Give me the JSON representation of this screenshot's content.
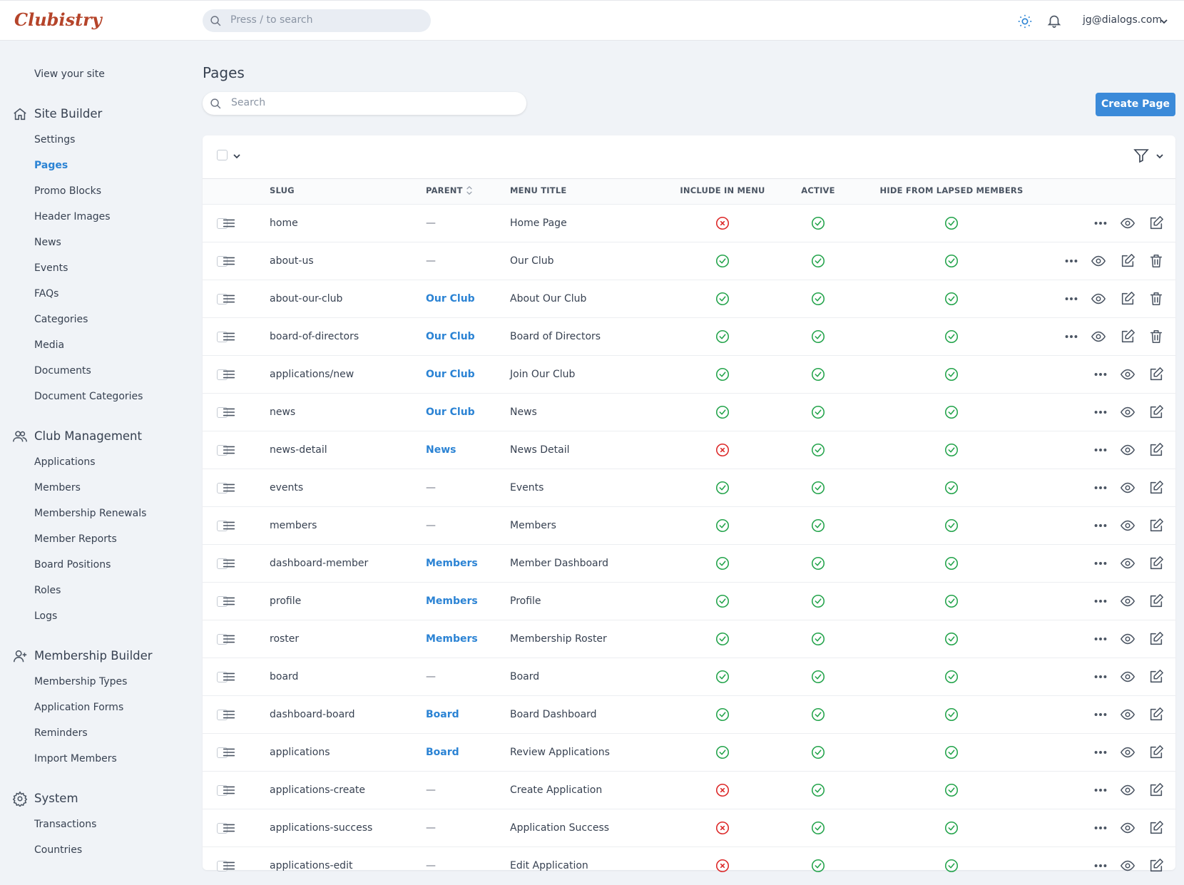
{
  "header": {
    "logo": "Clubistry",
    "search_placeholder": "Press / to search",
    "user": "jg@dialogs.com"
  },
  "sidebar": {
    "view_site": "View your site",
    "active_section": 0,
    "active_item": 1,
    "sections": [
      {
        "title": "Site Builder",
        "items": [
          "Settings",
          "Pages",
          "Promo Blocks",
          "Header Images",
          "News",
          "Events",
          "FAQs",
          "Categories",
          "Media",
          "Documents",
          "Document Categories"
        ]
      },
      {
        "title": "Club Management",
        "items": [
          "Applications",
          "Members",
          "Membership Renewals",
          "Member Reports",
          "Board Positions",
          "Roles",
          "Logs"
        ]
      },
      {
        "title": "Membership Builder",
        "items": [
          "Membership Types",
          "Application Forms",
          "Reminders",
          "Import Members"
        ]
      },
      {
        "title": "System",
        "items": [
          "Transactions",
          "Countries"
        ]
      }
    ]
  },
  "page": {
    "title": "Pages",
    "search_placeholder": "Search",
    "create_button": "Create Page"
  },
  "table": {
    "columns": [
      "SLUG",
      "PARENT",
      "MENU TITLE",
      "INCLUDE IN MENU",
      "ACTIVE",
      "HIDE FROM LAPSED MEMBERS"
    ],
    "rows": [
      {
        "slug": "home",
        "parent": "—",
        "menu_title": "Home Page",
        "include_in_menu": false,
        "active": true,
        "hide_from_lapsed": true,
        "deletable": false
      },
      {
        "slug": "about-us",
        "parent": "—",
        "menu_title": "Our Club",
        "include_in_menu": true,
        "active": true,
        "hide_from_lapsed": true,
        "deletable": true
      },
      {
        "slug": "about-our-club",
        "parent": "Our Club",
        "menu_title": "About Our Club",
        "include_in_menu": true,
        "active": true,
        "hide_from_lapsed": true,
        "deletable": true
      },
      {
        "slug": "board-of-directors",
        "parent": "Our Club",
        "menu_title": "Board of Directors",
        "include_in_menu": true,
        "active": true,
        "hide_from_lapsed": true,
        "deletable": true
      },
      {
        "slug": "applications/new",
        "parent": "Our Club",
        "menu_title": "Join Our Club",
        "include_in_menu": true,
        "active": true,
        "hide_from_lapsed": true,
        "deletable": false
      },
      {
        "slug": "news",
        "parent": "Our Club",
        "menu_title": "News",
        "include_in_menu": true,
        "active": true,
        "hide_from_lapsed": true,
        "deletable": false
      },
      {
        "slug": "news-detail",
        "parent": "News",
        "menu_title": "News Detail",
        "include_in_menu": false,
        "active": true,
        "hide_from_lapsed": true,
        "deletable": false
      },
      {
        "slug": "events",
        "parent": "—",
        "menu_title": "Events",
        "include_in_menu": true,
        "active": true,
        "hide_from_lapsed": true,
        "deletable": false
      },
      {
        "slug": "members",
        "parent": "—",
        "menu_title": "Members",
        "include_in_menu": true,
        "active": true,
        "hide_from_lapsed": true,
        "deletable": false
      },
      {
        "slug": "dashboard-member",
        "parent": "Members",
        "menu_title": "Member Dashboard",
        "include_in_menu": true,
        "active": true,
        "hide_from_lapsed": true,
        "deletable": false
      },
      {
        "slug": "profile",
        "parent": "Members",
        "menu_title": "Profile",
        "include_in_menu": true,
        "active": true,
        "hide_from_lapsed": true,
        "deletable": false
      },
      {
        "slug": "roster",
        "parent": "Members",
        "menu_title": "Membership Roster",
        "include_in_menu": true,
        "active": true,
        "hide_from_lapsed": true,
        "deletable": false
      },
      {
        "slug": "board",
        "parent": "—",
        "menu_title": "Board",
        "include_in_menu": true,
        "active": true,
        "hide_from_lapsed": true,
        "deletable": false
      },
      {
        "slug": "dashboard-board",
        "parent": "Board",
        "menu_title": "Board Dashboard",
        "include_in_menu": true,
        "active": true,
        "hide_from_lapsed": true,
        "deletable": false
      },
      {
        "slug": "applications",
        "parent": "Board",
        "menu_title": "Review Applications",
        "include_in_menu": true,
        "active": true,
        "hide_from_lapsed": true,
        "deletable": false
      },
      {
        "slug": "applications-create",
        "parent": "—",
        "menu_title": "Create Application",
        "include_in_menu": false,
        "active": true,
        "hide_from_lapsed": true,
        "deletable": false
      },
      {
        "slug": "applications-success",
        "parent": "—",
        "menu_title": "Application Success",
        "include_in_menu": false,
        "active": true,
        "hide_from_lapsed": true,
        "deletable": false
      },
      {
        "slug": "applications-edit",
        "parent": "—",
        "menu_title": "Edit Application",
        "include_in_menu": false,
        "active": true,
        "hide_from_lapsed": true,
        "deletable": false
      }
    ]
  }
}
